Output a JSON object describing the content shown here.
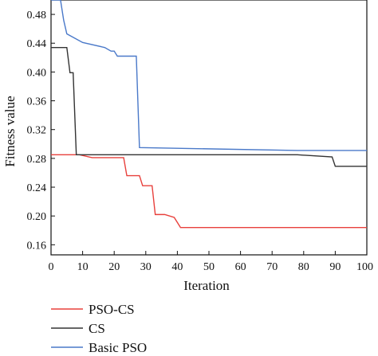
{
  "chart_data": {
    "type": "line",
    "title": "",
    "xlabel": "Iteration",
    "ylabel": "Fitness value",
    "xlim": [
      0,
      100
    ],
    "ylim": [
      0.146,
      0.5
    ],
    "xticks": [
      "0",
      "10",
      "20",
      "30",
      "40",
      "50",
      "60",
      "70",
      "80",
      "90",
      "100"
    ],
    "yticks": [
      "0.16",
      "0.20",
      "0.24",
      "0.28",
      "0.32",
      "0.36",
      "0.40",
      "0.44",
      "0.48"
    ],
    "grid": false,
    "legend_position": "below-left",
    "series": [
      {
        "name": "PSO-CS",
        "color": "#e8403c",
        "x": [
          0,
          9,
          13,
          23,
          24,
          28,
          29,
          32,
          33,
          36,
          39,
          41,
          100
        ],
        "y": [
          0.285,
          0.285,
          0.281,
          0.281,
          0.256,
          0.256,
          0.242,
          0.242,
          0.202,
          0.202,
          0.198,
          0.184,
          0.184
        ]
      },
      {
        "name": "CS",
        "color": "#333333",
        "x": [
          0,
          5,
          6,
          7,
          8,
          78,
          89,
          90,
          100
        ],
        "y": [
          0.434,
          0.434,
          0.399,
          0.399,
          0.285,
          0.285,
          0.282,
          0.269,
          0.269
        ]
      },
      {
        "name": "Basic PSO",
        "color": "#4a79c9",
        "x": [
          0,
          3,
          4,
          5,
          10,
          17,
          19,
          20,
          21,
          27,
          28,
          78,
          100
        ],
        "y": [
          0.5,
          0.5,
          0.472,
          0.453,
          0.441,
          0.434,
          0.429,
          0.429,
          0.422,
          0.422,
          0.295,
          0.291,
          0.291
        ]
      }
    ]
  }
}
